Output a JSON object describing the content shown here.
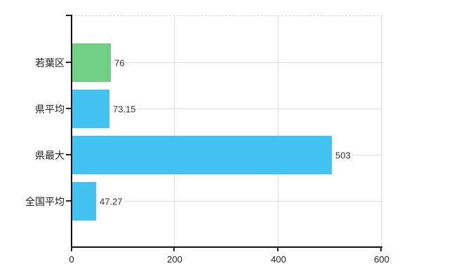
{
  "chart_data": {
    "type": "bar",
    "orientation": "horizontal",
    "title": "",
    "categories": [
      "若葉区",
      "県平均",
      "県最大",
      "全国平均"
    ],
    "values": [
      76,
      73.15,
      503,
      47.27
    ],
    "value_labels": [
      "76",
      "73.15",
      "503",
      "47.27"
    ],
    "series": [
      {
        "name": "値",
        "values": [
          76,
          73.15,
          503,
          47.27
        ]
      }
    ],
    "bar_colors": [
      "#71ce85",
      "#41c2f0",
      "#41c2f0",
      "#41c2f0"
    ],
    "x_tick_labels": [
      "0",
      "200",
      "400",
      "600"
    ],
    "x_tick_values": [
      0,
      200,
      400,
      600
    ],
    "xlabel": "",
    "ylabel": "",
    "xlim": [
      0,
      600
    ],
    "grid": "on",
    "legend": "none",
    "colors": {
      "bar_blue": "#41c2f0",
      "bar_green": "#71ce85",
      "gridline": "#dddddd",
      "axis": "#111111",
      "text": "#333333",
      "background": "#ffffff"
    }
  }
}
